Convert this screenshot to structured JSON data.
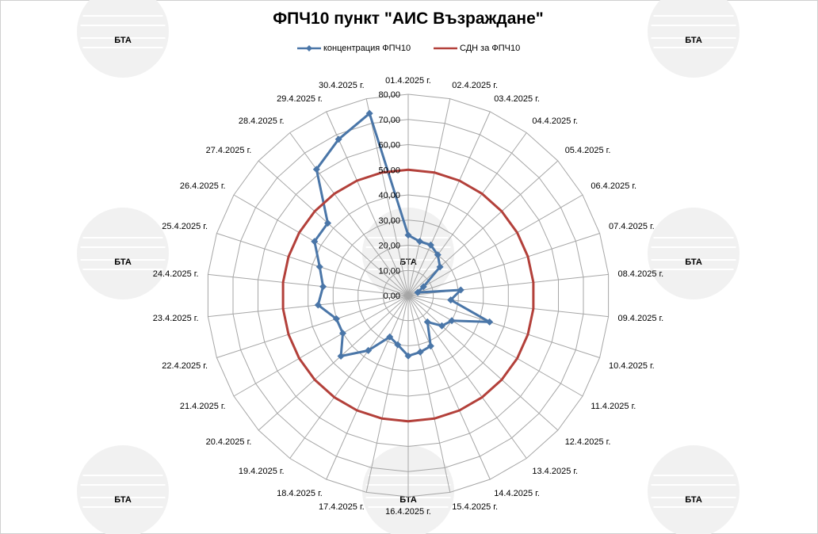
{
  "watermark": {
    "text": "БТА",
    "color": "#f1f1f1"
  },
  "chart_data": {
    "type": "radar",
    "title": "ФПЧ10 пункт \"АИС Възраждане\"",
    "categories": [
      "01.4.2025 г.",
      "02.4.2025 г.",
      "03.4.2025 г.",
      "04.4.2025 г.",
      "05.4.2025 г.",
      "06.4.2025 г.",
      "07.4.2025 г.",
      "08.4.2025 г.",
      "09.4.2025 г.",
      "10.4.2025 г.",
      "11.4.2025 г.",
      "12.4.2025 г.",
      "13.4.2025 г.",
      "14.4.2025 г.",
      "15.4.2025 г.",
      "16.4.2025 г.",
      "17.4.2025 г.",
      "18.4.2025 г.",
      "19.4.2025 г.",
      "20.4.2025 г.",
      "21.4.2025 г.",
      "22.4.2025 г.",
      "23.4.2025 г.",
      "24.4.2025 г.",
      "25.4.2025 г.",
      "26.4.2025 г.",
      "27.4.2025 г.",
      "28.4.2025 г.",
      "29.4.2025 г.",
      "30.4.2025 г."
    ],
    "series": [
      {
        "name": "концентрация ФПЧ10",
        "color": "#4a76a8",
        "marker": "diamond",
        "values": [
          24,
          22,
          22,
          20,
          17,
          7,
          4,
          21,
          17,
          34,
          20,
          18,
          13,
          22,
          23,
          24,
          20,
          18,
          27,
          36,
          30,
          30,
          36,
          34,
          37,
          43,
          43,
          62,
          68,
          74
        ]
      },
      {
        "name": "СДН за ФПЧ10",
        "color": "#b3403a",
        "marker": "none",
        "values": [
          50,
          50,
          50,
          50,
          50,
          50,
          50,
          50,
          50,
          50,
          50,
          50,
          50,
          50,
          50,
          50,
          50,
          50,
          50,
          50,
          50,
          50,
          50,
          50,
          50,
          50,
          50,
          50,
          50,
          50
        ]
      }
    ],
    "rlim": [
      0,
      80
    ],
    "ticks": [
      "0,00",
      "10,00",
      "20,00",
      "30,00",
      "40,00",
      "50,00",
      "60,00",
      "70,00",
      "80,00"
    ],
    "grid": true,
    "legend_position": "top"
  }
}
